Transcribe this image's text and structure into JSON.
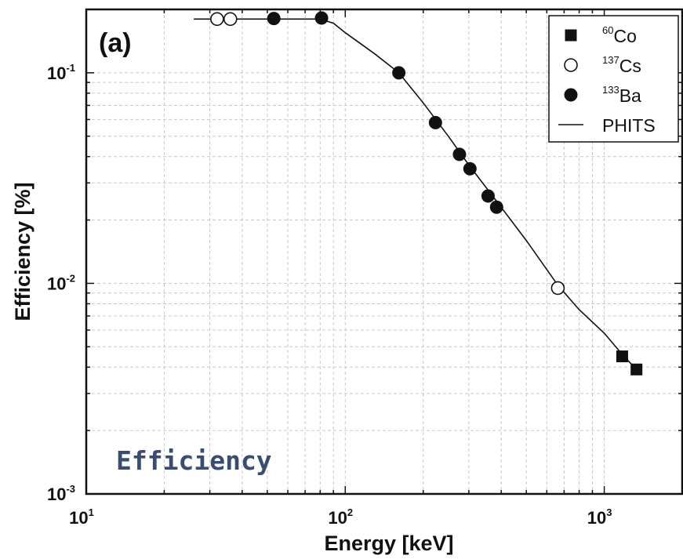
{
  "chart_data": {
    "type": "scatter",
    "panel_label": "(a)",
    "xlabel": "Energy [keV]",
    "ylabel": "Efficiency [%]",
    "xscale": "log",
    "yscale": "log",
    "xlim": [
      10,
      2000
    ],
    "ylim": [
      0.001,
      0.2
    ],
    "grid": true,
    "legend_position": "top-right",
    "x_ticks": [
      {
        "base": "10",
        "exp": "1"
      },
      {
        "base": "10",
        "exp": "2"
      },
      {
        "base": "10",
        "exp": "3"
      }
    ],
    "y_ticks": [
      {
        "base": "10",
        "exp": "-3"
      },
      {
        "base": "10",
        "exp": "-2"
      },
      {
        "base": "10",
        "exp": "-1"
      }
    ],
    "series": [
      {
        "name": "Co",
        "isotope_mass": "60",
        "marker": "filled-square",
        "points": [
          [
            1173,
            0.0045
          ],
          [
            1332,
            0.0039
          ]
        ]
      },
      {
        "name": "Cs",
        "isotope_mass": "137",
        "marker": "open-circle",
        "points": [
          [
            32,
            0.18
          ],
          [
            36,
            0.18
          ],
          [
            662,
            0.0095
          ]
        ]
      },
      {
        "name": "Ba",
        "isotope_mass": "133",
        "marker": "filled-circle",
        "points": [
          [
            53,
            0.181
          ],
          [
            81,
            0.182
          ],
          [
            161,
            0.1
          ],
          [
            223,
            0.058
          ],
          [
            276,
            0.041
          ],
          [
            303,
            0.035
          ],
          [
            356,
            0.026
          ],
          [
            384,
            0.023
          ]
        ]
      },
      {
        "name": "PHITS",
        "marker": "line",
        "points": [
          [
            26,
            0.18
          ],
          [
            80,
            0.18
          ],
          [
            90,
            0.172
          ],
          [
            100,
            0.155
          ],
          [
            130,
            0.123
          ],
          [
            161,
            0.1
          ],
          [
            200,
            0.072
          ],
          [
            250,
            0.05
          ],
          [
            300,
            0.0365
          ],
          [
            400,
            0.023
          ],
          [
            500,
            0.016
          ],
          [
            662,
            0.0098
          ],
          [
            800,
            0.0075
          ],
          [
            1000,
            0.0058
          ],
          [
            1173,
            0.0046
          ],
          [
            1332,
            0.0039
          ]
        ]
      }
    ]
  },
  "watermark": "Efficiency",
  "colors": {
    "ink": "#111111",
    "grid": "#c8c8c8",
    "watermark": "#3b4d6e"
  }
}
